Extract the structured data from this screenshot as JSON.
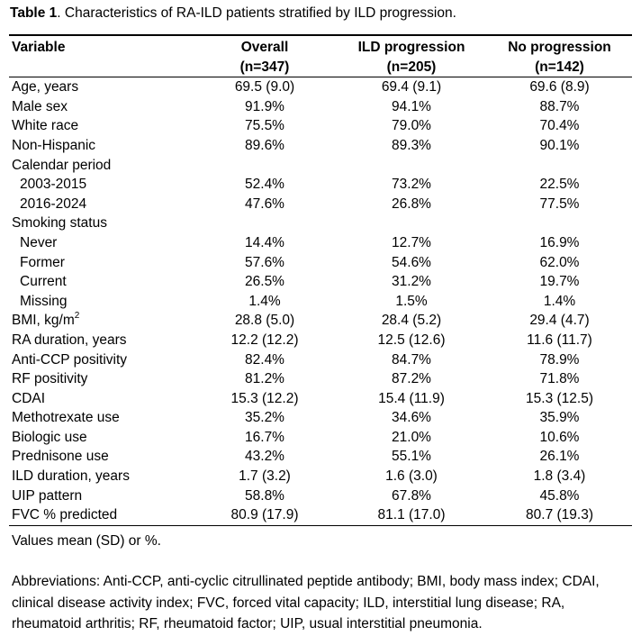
{
  "caption": {
    "label": "Table 1",
    "text": ". Characteristics of RA-ILD patients stratified by ILD progression."
  },
  "header": {
    "variable": "Variable",
    "overall": "Overall",
    "overall_n": "(n=347)",
    "progression": "ILD progression",
    "progression_n": "(n=205)",
    "no_progression": "No progression",
    "no_progression_n": "(n=142)"
  },
  "rows": [
    {
      "label": "Age, years",
      "overall": "69.5 (9.0)",
      "progression": "69.4 (9.1)",
      "no_progression": "69.6 (8.9)"
    },
    {
      "label": "Male sex",
      "overall": "91.9%",
      "progression": "94.1%",
      "no_progression": "88.7%"
    },
    {
      "label": "White race",
      "overall": "75.5%",
      "progression": "79.0%",
      "no_progression": "70.4%"
    },
    {
      "label": "Non-Hispanic",
      "overall": "89.6%",
      "progression": "89.3%",
      "no_progression": "90.1%"
    },
    {
      "label": "Calendar period",
      "overall": "",
      "progression": "",
      "no_progression": ""
    },
    {
      "label": "2003-2015",
      "overall": "52.4%",
      "progression": "73.2%",
      "no_progression": "22.5%"
    },
    {
      "label": "2016-2024",
      "overall": "47.6%",
      "progression": "26.8%",
      "no_progression": "77.5%"
    },
    {
      "label": "Smoking status",
      "overall": "",
      "progression": "",
      "no_progression": ""
    },
    {
      "label": "Never",
      "overall": "14.4%",
      "progression": "12.7%",
      "no_progression": "16.9%"
    },
    {
      "label": "Former",
      "overall": "57.6%",
      "progression": "54.6%",
      "no_progression": "62.0%"
    },
    {
      "label": "Current",
      "overall": "26.5%",
      "progression": "31.2%",
      "no_progression": "19.7%"
    },
    {
      "label": "Missing",
      "overall": "1.4%",
      "progression": "1.5%",
      "no_progression": "1.4%"
    },
    {
      "label": "BMI, kg/m",
      "label_sup": "2",
      "overall": "28.8 (5.0)",
      "progression": "28.4 (5.2)",
      "no_progression": "29.4 (4.7)"
    },
    {
      "label": "RA duration, years",
      "overall": "12.2 (12.2)",
      "progression": "12.5 (12.6)",
      "no_progression": "11.6 (11.7)"
    },
    {
      "label": "Anti-CCP positivity",
      "overall": "82.4%",
      "progression": "84.7%",
      "no_progression": "78.9%"
    },
    {
      "label": "RF positivity",
      "overall": "81.2%",
      "progression": "87.2%",
      "no_progression": "71.8%"
    },
    {
      "label": "CDAI",
      "overall": "15.3 (12.2)",
      "progression": "15.4 (11.9)",
      "no_progression": "15.3 (12.5)"
    },
    {
      "label": "Methotrexate use",
      "overall": "35.2%",
      "progression": "34.6%",
      "no_progression": "35.9%"
    },
    {
      "label": "Biologic use",
      "overall": "16.7%",
      "progression": "21.0%",
      "no_progression": "10.6%"
    },
    {
      "label": "Prednisone use",
      "overall": "43.2%",
      "progression": "55.1%",
      "no_progression": "26.1%"
    },
    {
      "label": "ILD duration, years",
      "overall": "1.7 (3.2)",
      "progression": "1.6 (3.0)",
      "no_progression": "1.8 (3.4)"
    },
    {
      "label": "UIP pattern",
      "overall": "58.8%",
      "progression": "67.8%",
      "no_progression": "45.8%"
    },
    {
      "label": "FVC % predicted",
      "overall": "80.9 (17.9)",
      "progression": "81.1 (17.0)",
      "no_progression": "80.7 (19.3)"
    }
  ],
  "footnote": "Values mean (SD) or %.",
  "abbreviations": "Abbreviations: Anti-CCP, anti-cyclic citrullinated peptide antibody; BMI, body mass index; CDAI, clinical disease activity index; FVC, forced vital capacity; ILD, interstitial lung disease; RA, rheumatoid arthritis; RF, rheumatoid factor; UIP, usual interstitial pneumonia."
}
